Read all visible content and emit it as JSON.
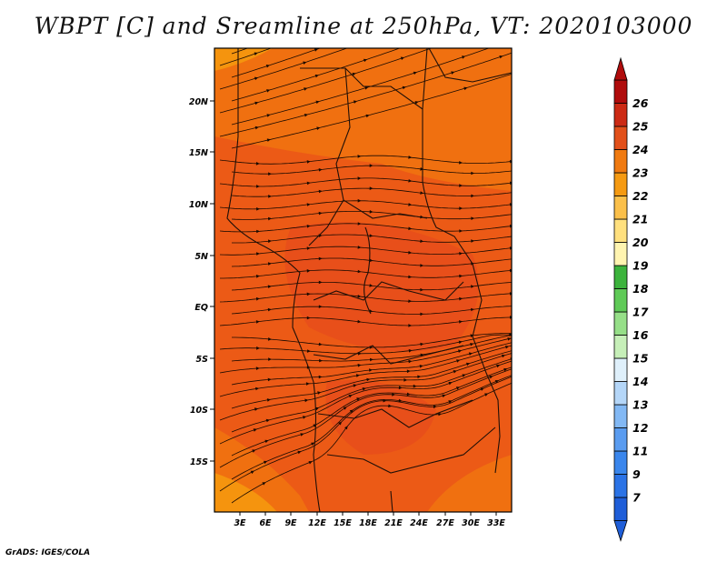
{
  "title": "WBPT [C] and Sreamline at 250hPa, VT: 2020103000",
  "credit": "GrADS: IGES/COLA",
  "map": {
    "lon_ticks": [
      "3E",
      "6E",
      "9E",
      "12E",
      "15E",
      "18E",
      "21E",
      "24E",
      "27E",
      "30E",
      "33E"
    ],
    "lat_ticks": [
      "20N",
      "15N",
      "10N",
      "5N",
      "EQ",
      "5S",
      "10S",
      "15S"
    ]
  },
  "colorbar": {
    "labels": [
      "7",
      "9",
      "11",
      "12",
      "13",
      "14",
      "15",
      "16",
      "17",
      "18",
      "19",
      "20",
      "21",
      "22",
      "23",
      "24",
      "25",
      "26"
    ],
    "colors": [
      "#1f5ed8",
      "#2b73e6",
      "#3a86ec",
      "#5a9cf0",
      "#82b8f4",
      "#b4d6f8",
      "#dff0fb",
      "#c6efb8",
      "#96df88",
      "#5fca57",
      "#3cb33c",
      "#fff4b0",
      "#ffe07e",
      "#fbc04a",
      "#f59a12",
      "#f07a10",
      "#e2501a",
      "#cc2a14",
      "#b00c0c"
    ]
  },
  "palette": {
    "land_base": "#ec5a16",
    "warm": "#e84f1a",
    "cool": "#f07010",
    "coolest": "#f5940e",
    "streamline": "#1a0a00",
    "border": "#201008"
  }
}
